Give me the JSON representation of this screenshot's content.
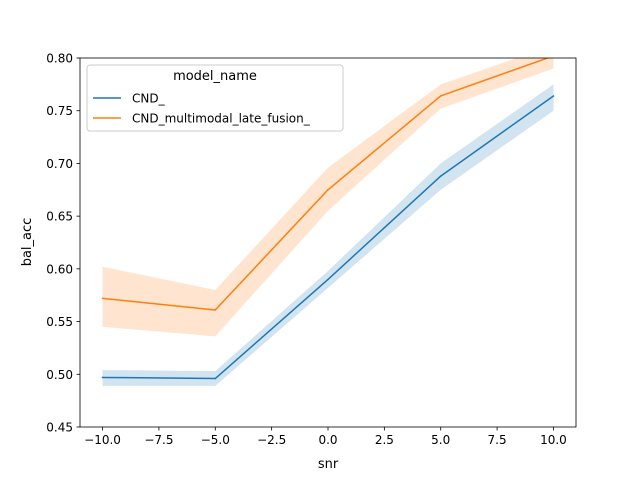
{
  "chart_data": {
    "type": "line",
    "title": "",
    "xlabel": "snr",
    "ylabel": "bal_acc",
    "xlim": [
      -11,
      11
    ],
    "ylim": [
      0.45,
      0.8
    ],
    "xticks": [
      -10.0,
      -7.5,
      -5.0,
      -2.5,
      0.0,
      2.5,
      5.0,
      7.5,
      10.0
    ],
    "xtick_labels": [
      "−10.0",
      "−7.5",
      "−5.0",
      "−2.5",
      "0.0",
      "2.5",
      "5.0",
      "7.5",
      "10.0"
    ],
    "yticks": [
      0.45,
      0.5,
      0.55,
      0.6,
      0.65,
      0.7,
      0.75,
      0.8
    ],
    "ytick_labels": [
      "0.45",
      "0.50",
      "0.55",
      "0.60",
      "0.65",
      "0.70",
      "0.75",
      "0.80"
    ],
    "grid": false,
    "legend": {
      "title": "model_name",
      "position": "top-left"
    },
    "x": [
      -10,
      -5,
      0,
      5,
      10
    ],
    "series": [
      {
        "name": "CND_",
        "color": "#1f77b4",
        "values": [
          0.497,
          0.496,
          0.59,
          0.688,
          0.764
        ],
        "ci_low": [
          0.489,
          0.489,
          0.582,
          0.675,
          0.75
        ],
        "ci_high": [
          0.504,
          0.503,
          0.598,
          0.7,
          0.775
        ]
      },
      {
        "name": "CND_multimodal_late_fusion_",
        "color": "#ff7f0e",
        "values": [
          0.572,
          0.561,
          0.675,
          0.764,
          0.802
        ],
        "ci_low": [
          0.545,
          0.536,
          0.655,
          0.752,
          0.79
        ],
        "ci_high": [
          0.602,
          0.58,
          0.696,
          0.775,
          0.812
        ]
      }
    ]
  }
}
